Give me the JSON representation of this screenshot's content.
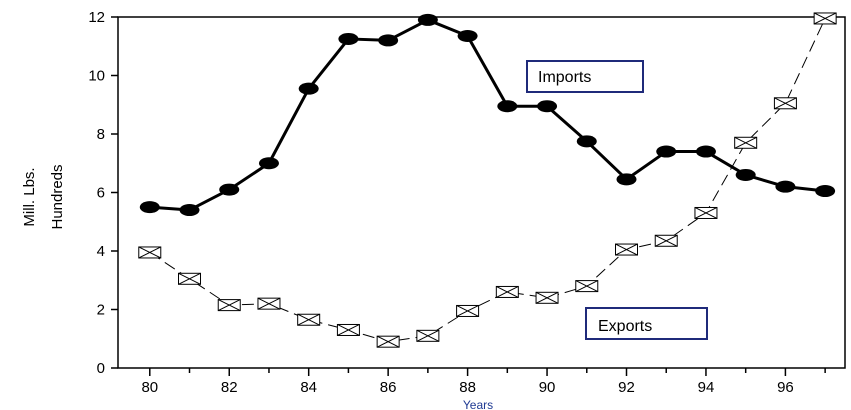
{
  "chart_data": {
    "type": "line",
    "xlabel": "Years",
    "ylabel_lines": [
      "Mill. Lbs.",
      "Hundreds"
    ],
    "xlim": [
      79.2,
      97.5
    ],
    "ylim": [
      0,
      12
    ],
    "x_ticks": [
      "80",
      "82",
      "84",
      "86",
      "88",
      "90",
      "92",
      "94",
      "96"
    ],
    "y_ticks": [
      "0",
      "2",
      "4",
      "6",
      "8",
      "10",
      "12"
    ],
    "grid": false,
    "series": [
      {
        "name": "Imports",
        "style": "solid",
        "marker": "filled-ellipse",
        "color": "#000000",
        "x": [
          80,
          81,
          82,
          83,
          84,
          85,
          86,
          87,
          88,
          89,
          90,
          91,
          92,
          93,
          94,
          95,
          96,
          97
        ],
        "values": [
          5.5,
          5.4,
          6.1,
          7.0,
          9.55,
          11.25,
          11.2,
          11.9,
          11.35,
          8.95,
          8.95,
          7.75,
          6.45,
          7.4,
          7.4,
          6.6,
          6.2,
          6.05
        ]
      },
      {
        "name": "Exports",
        "style": "dashed",
        "marker": "crossed-box",
        "color": "#000000",
        "x": [
          80,
          81,
          82,
          83,
          84,
          85,
          86,
          87,
          88,
          89,
          90,
          91,
          92,
          93,
          94,
          95,
          96,
          97
        ],
        "values": [
          3.95,
          3.05,
          2.15,
          2.2,
          1.65,
          1.3,
          0.9,
          1.1,
          1.95,
          2.6,
          2.4,
          2.8,
          4.05,
          4.35,
          5.3,
          7.7,
          9.05,
          11.95
        ]
      }
    ]
  }
}
